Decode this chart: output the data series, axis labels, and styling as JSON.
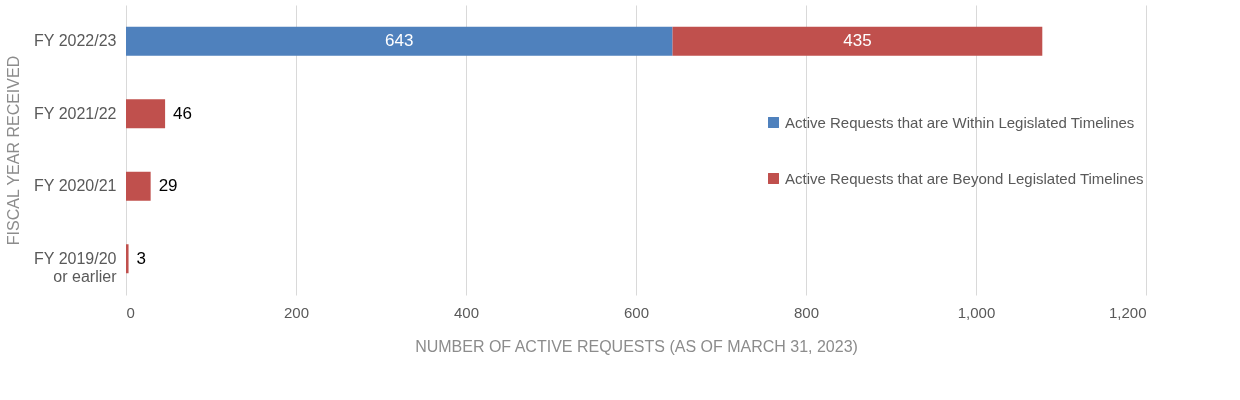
{
  "chart_data": {
    "type": "bar",
    "orientation": "horizontal",
    "stacked": true,
    "categories": [
      "FY 2022/23",
      "FY 2021/22",
      "FY 2020/21",
      "FY 2019/20\nor earlier"
    ],
    "series": [
      {
        "name": "Active Requests that are Within Legislated Timelines",
        "color": "#4f81bd",
        "values": [
          643,
          null,
          null,
          null
        ]
      },
      {
        "name": "Active Requests that are Beyond Legislated Timelines",
        "color": "#c0504d",
        "values": [
          435,
          46,
          29,
          3
        ]
      }
    ],
    "xlim": [
      0,
      1200
    ],
    "xticks": [
      0,
      200,
      400,
      600,
      800,
      {
        "value": 1000,
        "label": "1,000"
      },
      {
        "value": 1200,
        "label": "1,200"
      }
    ],
    "xlabel": "NUMBER OF ACTIVE REQUESTS (AS OF MARCH 31, 2023)",
    "ylabel": "FISCAL YEAR RECEIVED",
    "grid": "x",
    "legend": "right",
    "data_labels": true
  }
}
